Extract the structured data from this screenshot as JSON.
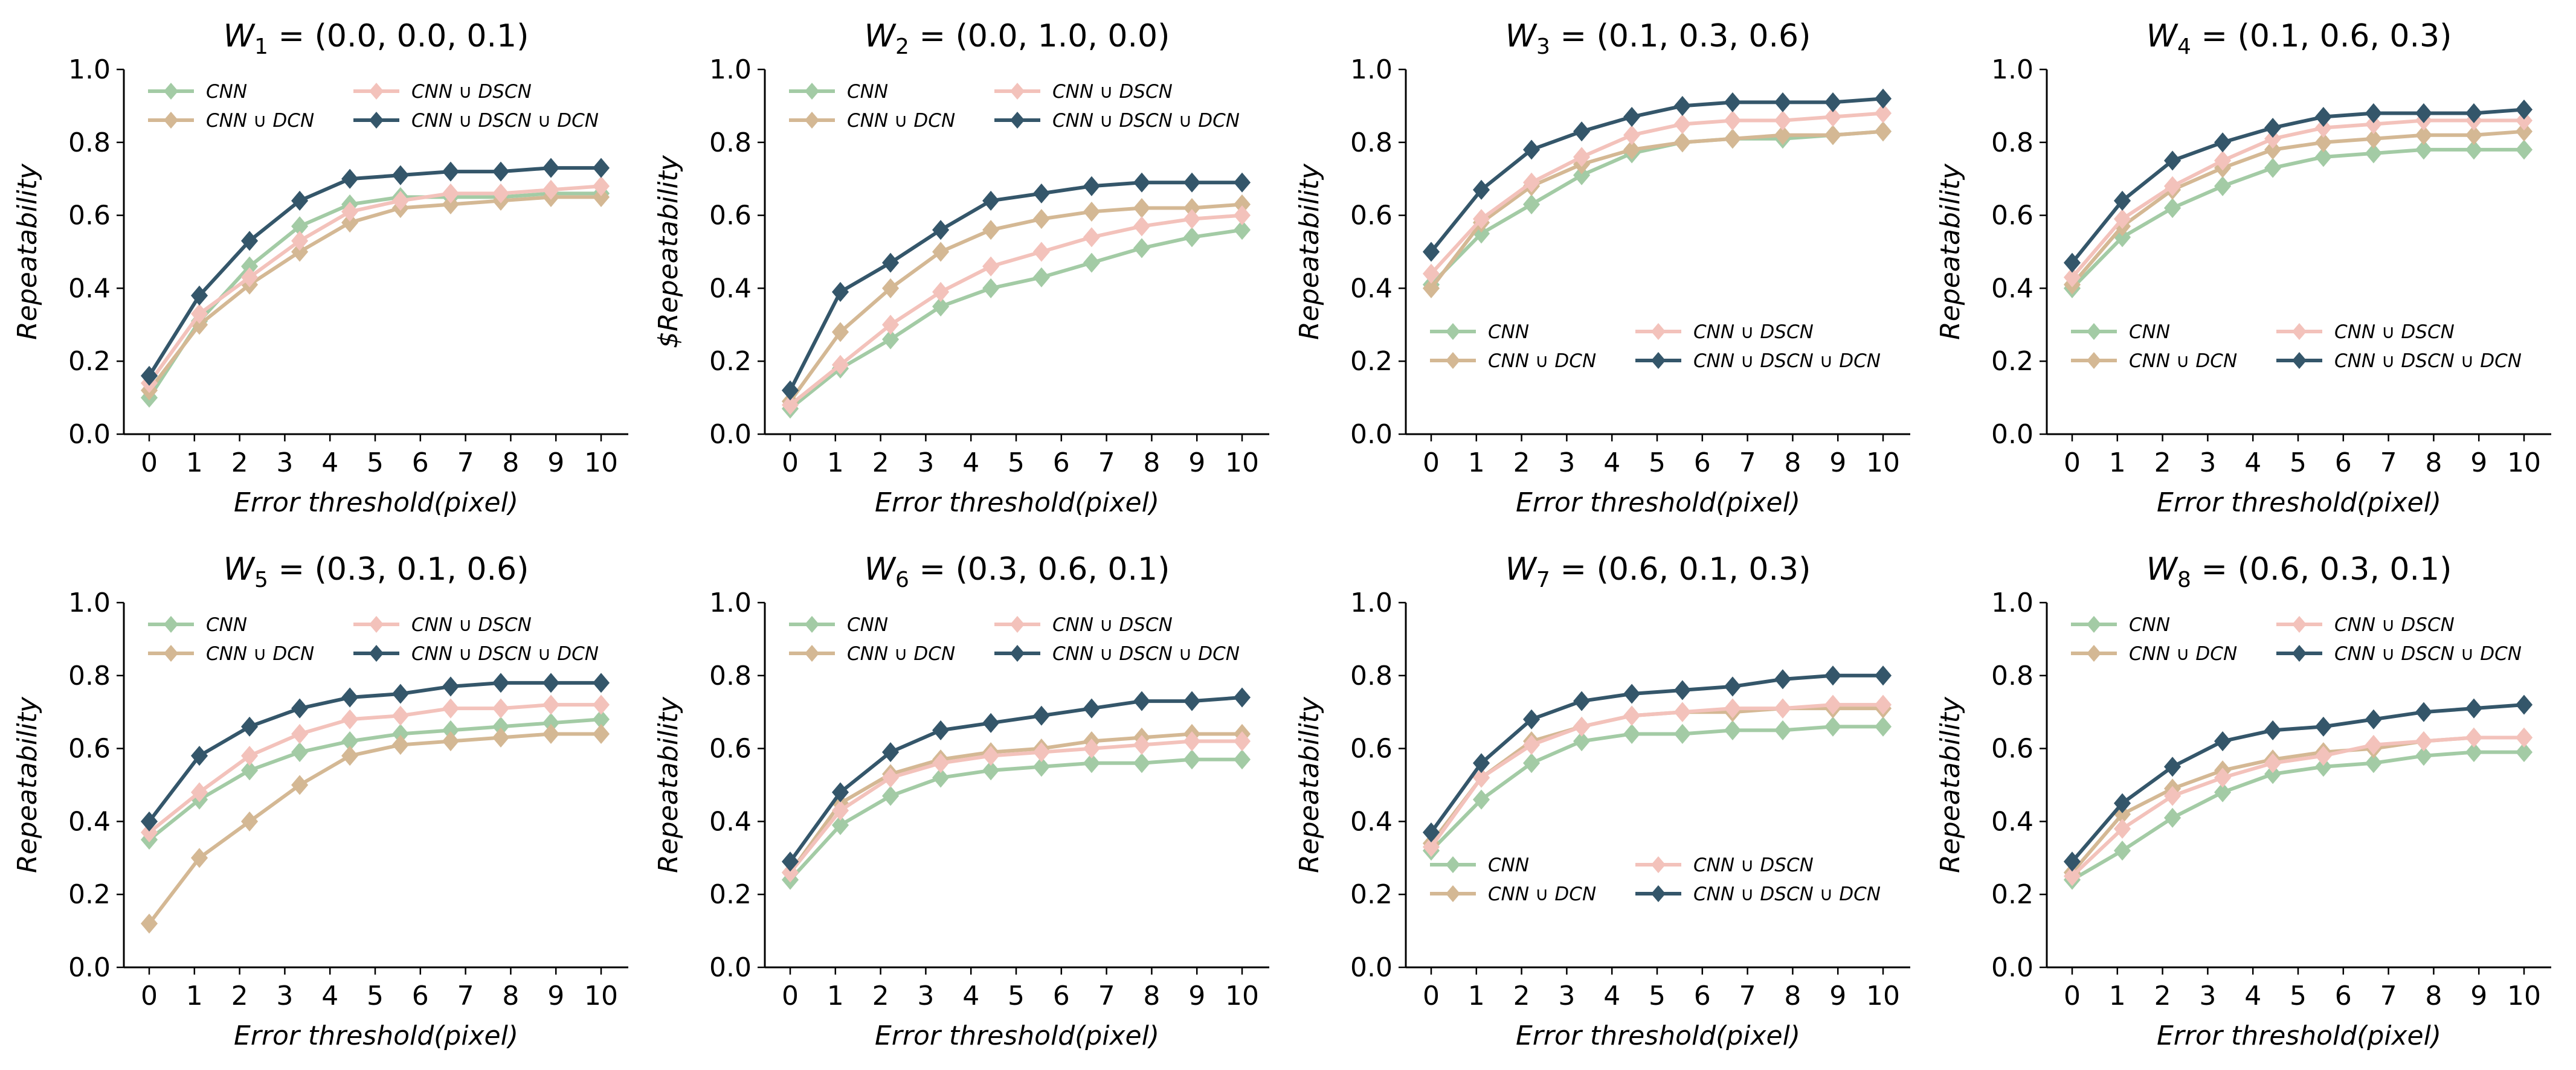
{
  "colors": {
    "CNN": "#a3cba5",
    "CNN ∪ DCN": "#d4b894",
    "CNN ∪ DSCN": "#f3c2bb",
    "CNN ∪ DSCN ∪ DCN": "#34566a"
  },
  "chart_data": [
    {
      "type": "line",
      "title": "W_1 = (0.0, 0.0, 0.1)",
      "title_main": "W",
      "title_sub": "1",
      "title_rest": " = (0.0, 0.0, 0.1)",
      "xlabel": "Error    threshold(pixel)",
      "ylabel": "Repeatability",
      "ylim": [
        0,
        1.0
      ],
      "xlim": [
        0,
        10
      ],
      "yticks": [
        "0.0",
        "0.2",
        "0.4",
        "0.6",
        "0.8",
        "1.0"
      ],
      "xticks": [
        "0",
        "1",
        "2",
        "3",
        "4",
        "5",
        "6",
        "7",
        "8",
        "9",
        "10"
      ],
      "legend_position": "top",
      "x": [
        0,
        1.11,
        2.22,
        3.33,
        4.44,
        5.56,
        6.67,
        7.78,
        8.89,
        10
      ],
      "series": [
        {
          "name": "CNN",
          "values": [
            0.1,
            0.31,
            0.46,
            0.57,
            0.63,
            0.65,
            0.65,
            0.65,
            0.66,
            0.66
          ]
        },
        {
          "name": "CNN ∪ DCN",
          "values": [
            0.12,
            0.3,
            0.41,
            0.5,
            0.58,
            0.62,
            0.63,
            0.64,
            0.65,
            0.65
          ]
        },
        {
          "name": "CNN ∪ DSCN",
          "values": [
            0.14,
            0.33,
            0.43,
            0.53,
            0.61,
            0.64,
            0.66,
            0.66,
            0.67,
            0.68
          ]
        },
        {
          "name": "CNN ∪ DSCN ∪ DCN",
          "values": [
            0.16,
            0.38,
            0.53,
            0.64,
            0.7,
            0.71,
            0.72,
            0.72,
            0.73,
            0.73
          ]
        }
      ]
    },
    {
      "type": "line",
      "title": "W_2 = (0.0, 1.0, 0.0)",
      "title_main": "W",
      "title_sub": "2",
      "title_rest": " = (0.0, 1.0, 0.0)",
      "xlabel": "Error    threshold(pixel)",
      "ylabel": "$Repeatability",
      "ylim": [
        0,
        1.0
      ],
      "xlim": [
        0,
        10
      ],
      "yticks": [
        "0.0",
        "0.2",
        "0.4",
        "0.6",
        "0.8",
        "1.0"
      ],
      "xticks": [
        "0",
        "1",
        "2",
        "3",
        "4",
        "5",
        "6",
        "7",
        "8",
        "9",
        "10"
      ],
      "legend_position": "top",
      "x": [
        0,
        1.11,
        2.22,
        3.33,
        4.44,
        5.56,
        6.67,
        7.78,
        8.89,
        10
      ],
      "series": [
        {
          "name": "CNN",
          "values": [
            0.07,
            0.18,
            0.26,
            0.35,
            0.4,
            0.43,
            0.47,
            0.51,
            0.54,
            0.56
          ]
        },
        {
          "name": "CNN ∪ DCN",
          "values": [
            0.09,
            0.28,
            0.4,
            0.5,
            0.56,
            0.59,
            0.61,
            0.62,
            0.62,
            0.63
          ]
        },
        {
          "name": "CNN ∪ DSCN",
          "values": [
            0.08,
            0.19,
            0.3,
            0.39,
            0.46,
            0.5,
            0.54,
            0.57,
            0.59,
            0.6
          ]
        },
        {
          "name": "CNN ∪ DSCN ∪ DCN",
          "values": [
            0.12,
            0.39,
            0.47,
            0.56,
            0.64,
            0.66,
            0.68,
            0.69,
            0.69,
            0.69
          ]
        }
      ]
    },
    {
      "type": "line",
      "title": "W_3 = (0.1, 0.3, 0.6)",
      "title_main": "W",
      "title_sub": "3",
      "title_rest": " = (0.1, 0.3, 0.6)",
      "xlabel": "Error    threshold(pixel)",
      "ylabel": "Repeatability",
      "ylim": [
        0,
        1.0
      ],
      "xlim": [
        0,
        10
      ],
      "yticks": [
        "0.0",
        "0.2",
        "0.4",
        "0.6",
        "0.8",
        "1.0"
      ],
      "xticks": [
        "0",
        "1",
        "2",
        "3",
        "4",
        "5",
        "6",
        "7",
        "8",
        "9",
        "10"
      ],
      "legend_position": "bottom",
      "x": [
        0,
        1.11,
        2.22,
        3.33,
        4.44,
        5.56,
        6.67,
        7.78,
        8.89,
        10
      ],
      "series": [
        {
          "name": "CNN",
          "values": [
            0.41,
            0.55,
            0.63,
            0.71,
            0.77,
            0.8,
            0.81,
            0.81,
            0.82,
            0.83
          ]
        },
        {
          "name": "CNN ∪ DCN",
          "values": [
            0.4,
            0.58,
            0.68,
            0.74,
            0.78,
            0.8,
            0.81,
            0.82,
            0.82,
            0.83
          ]
        },
        {
          "name": "CNN ∪ DSCN",
          "values": [
            0.44,
            0.59,
            0.69,
            0.76,
            0.82,
            0.85,
            0.86,
            0.86,
            0.87,
            0.88
          ]
        },
        {
          "name": "CNN ∪ DSCN ∪ DCN",
          "values": [
            0.5,
            0.67,
            0.78,
            0.83,
            0.87,
            0.9,
            0.91,
            0.91,
            0.91,
            0.92
          ]
        }
      ]
    },
    {
      "type": "line",
      "title": "W_4 = (0.1, 0.6, 0.3)",
      "title_main": "W",
      "title_sub": "4",
      "title_rest": " = (0.1, 0.6, 0.3)",
      "xlabel": "Error    threshold(pixel)",
      "ylabel": "Repeatability",
      "ylim": [
        0,
        1.0
      ],
      "xlim": [
        0,
        10
      ],
      "yticks": [
        "0.0",
        "0.2",
        "0.4",
        "0.6",
        "0.8",
        "1.0"
      ],
      "xticks": [
        "0",
        "1",
        "2",
        "3",
        "4",
        "5",
        "6",
        "7",
        "8",
        "9",
        "10"
      ],
      "legend_position": "bottom",
      "x": [
        0,
        1.11,
        2.22,
        3.33,
        4.44,
        5.56,
        6.67,
        7.78,
        8.89,
        10
      ],
      "series": [
        {
          "name": "CNN",
          "values": [
            0.4,
            0.54,
            0.62,
            0.68,
            0.73,
            0.76,
            0.77,
            0.78,
            0.78,
            0.78
          ]
        },
        {
          "name": "CNN ∪ DCN",
          "values": [
            0.41,
            0.57,
            0.67,
            0.73,
            0.78,
            0.8,
            0.81,
            0.82,
            0.82,
            0.83
          ]
        },
        {
          "name": "CNN ∪ DSCN",
          "values": [
            0.43,
            0.59,
            0.68,
            0.75,
            0.81,
            0.84,
            0.85,
            0.86,
            0.86,
            0.86
          ]
        },
        {
          "name": "CNN ∪ DSCN ∪ DCN",
          "values": [
            0.47,
            0.64,
            0.75,
            0.8,
            0.84,
            0.87,
            0.88,
            0.88,
            0.88,
            0.89
          ]
        }
      ]
    },
    {
      "type": "line",
      "title": "W_5 = (0.3, 0.1, 0.6)",
      "title_main": "W",
      "title_sub": "5",
      "title_rest": " = (0.3, 0.1, 0.6)",
      "xlabel": "Error    threshold(pixel)",
      "ylabel": "Repeatability",
      "ylim": [
        0,
        1.0
      ],
      "xlim": [
        0,
        10
      ],
      "yticks": [
        "0.0",
        "0.2",
        "0.4",
        "0.6",
        "0.8",
        "1.0"
      ],
      "xticks": [
        "0",
        "1",
        "2",
        "3",
        "4",
        "5",
        "6",
        "7",
        "8",
        "9",
        "10"
      ],
      "legend_position": "top",
      "x": [
        0,
        1.11,
        2.22,
        3.33,
        4.44,
        5.56,
        6.67,
        7.78,
        8.89,
        10
      ],
      "series": [
        {
          "name": "CNN",
          "values": [
            0.35,
            0.46,
            0.54,
            0.59,
            0.62,
            0.64,
            0.65,
            0.66,
            0.67,
            0.68
          ]
        },
        {
          "name": "CNN ∪ DCN",
          "values": [
            0.12,
            0.3,
            0.4,
            0.5,
            0.58,
            0.61,
            0.62,
            0.63,
            0.64,
            0.64
          ]
        },
        {
          "name": "CNN ∪ DSCN",
          "values": [
            0.37,
            0.48,
            0.58,
            0.64,
            0.68,
            0.69,
            0.71,
            0.71,
            0.72,
            0.72
          ]
        },
        {
          "name": "CNN ∪ DSCN ∪ DCN",
          "values": [
            0.4,
            0.58,
            0.66,
            0.71,
            0.74,
            0.75,
            0.77,
            0.78,
            0.78,
            0.78
          ]
        }
      ]
    },
    {
      "type": "line",
      "title": "W_6 = (0.3, 0.6, 0.1)",
      "title_main": "W",
      "title_sub": "6",
      "title_rest": " = (0.3, 0.6, 0.1)",
      "xlabel": "Error    threshold(pixel)",
      "ylabel": "Repeatability",
      "ylim": [
        0,
        1.0
      ],
      "xlim": [
        0,
        10
      ],
      "yticks": [
        "0.0",
        "0.2",
        "0.4",
        "0.6",
        "0.8",
        "1.0"
      ],
      "xticks": [
        "0",
        "1",
        "2",
        "3",
        "4",
        "5",
        "6",
        "7",
        "8",
        "9",
        "10"
      ],
      "legend_position": "top",
      "x": [
        0,
        1.11,
        2.22,
        3.33,
        4.44,
        5.56,
        6.67,
        7.78,
        8.89,
        10
      ],
      "series": [
        {
          "name": "CNN",
          "values": [
            0.24,
            0.39,
            0.47,
            0.52,
            0.54,
            0.55,
            0.56,
            0.56,
            0.57,
            0.57
          ]
        },
        {
          "name": "CNN ∪ DCN",
          "values": [
            0.26,
            0.45,
            0.53,
            0.57,
            0.59,
            0.6,
            0.62,
            0.63,
            0.64,
            0.64
          ]
        },
        {
          "name": "CNN ∪ DSCN",
          "values": [
            0.26,
            0.43,
            0.52,
            0.56,
            0.58,
            0.59,
            0.6,
            0.61,
            0.62,
            0.62
          ]
        },
        {
          "name": "CNN ∪ DSCN ∪ DCN",
          "values": [
            0.29,
            0.48,
            0.59,
            0.65,
            0.67,
            0.69,
            0.71,
            0.73,
            0.73,
            0.74
          ]
        }
      ]
    },
    {
      "type": "line",
      "title": "W_7 = (0.6, 0.1, 0.3)",
      "title_main": "W",
      "title_sub": "7",
      "title_rest": " = (0.6, 0.1, 0.3)",
      "xlabel": "Error    threshold(pixel)",
      "ylabel": "Repeatability",
      "ylim": [
        0,
        1.0
      ],
      "xlim": [
        0,
        10
      ],
      "yticks": [
        "0.0",
        "0.2",
        "0.4",
        "0.6",
        "0.8",
        "1.0"
      ],
      "xticks": [
        "0",
        "1",
        "2",
        "3",
        "4",
        "5",
        "6",
        "7",
        "8",
        "9",
        "10"
      ],
      "legend_position": "bottom",
      "x": [
        0,
        1.11,
        2.22,
        3.33,
        4.44,
        5.56,
        6.67,
        7.78,
        8.89,
        10
      ],
      "series": [
        {
          "name": "CNN",
          "values": [
            0.32,
            0.46,
            0.56,
            0.62,
            0.64,
            0.64,
            0.65,
            0.65,
            0.66,
            0.66
          ]
        },
        {
          "name": "CNN ∪ DCN",
          "values": [
            0.34,
            0.52,
            0.62,
            0.66,
            0.69,
            0.7,
            0.7,
            0.71,
            0.71,
            0.71
          ]
        },
        {
          "name": "CNN ∪ DSCN",
          "values": [
            0.33,
            0.52,
            0.61,
            0.66,
            0.69,
            0.7,
            0.71,
            0.71,
            0.72,
            0.72
          ]
        },
        {
          "name": "CNN ∪ DSCN ∪ DCN",
          "values": [
            0.37,
            0.56,
            0.68,
            0.73,
            0.75,
            0.76,
            0.77,
            0.79,
            0.8,
            0.8
          ]
        }
      ]
    },
    {
      "type": "line",
      "title": "W_8 = (0.6, 0.3, 0.1)",
      "title_main": "W",
      "title_sub": "8",
      "title_rest": " = (0.6, 0.3, 0.1)",
      "xlabel": "Error    threshold(pixel)",
      "ylabel": "Repeatability",
      "ylim": [
        0,
        1.0
      ],
      "xlim": [
        0,
        10
      ],
      "yticks": [
        "0.0",
        "0.2",
        "0.4",
        "0.6",
        "0.8",
        "1.0"
      ],
      "xticks": [
        "0",
        "1",
        "2",
        "3",
        "4",
        "5",
        "6",
        "7",
        "8",
        "9",
        "10"
      ],
      "legend_position": "top",
      "x": [
        0,
        1.11,
        2.22,
        3.33,
        4.44,
        5.56,
        6.67,
        7.78,
        8.89,
        10
      ],
      "series": [
        {
          "name": "CNN",
          "values": [
            0.24,
            0.32,
            0.41,
            0.48,
            0.53,
            0.55,
            0.56,
            0.58,
            0.59,
            0.59
          ]
        },
        {
          "name": "CNN ∪ DCN",
          "values": [
            0.26,
            0.42,
            0.49,
            0.54,
            0.57,
            0.59,
            0.6,
            0.62,
            0.63,
            0.63
          ]
        },
        {
          "name": "CNN ∪ DSCN",
          "values": [
            0.25,
            0.38,
            0.47,
            0.52,
            0.56,
            0.58,
            0.61,
            0.62,
            0.63,
            0.63
          ]
        },
        {
          "name": "CNN ∪ DSCN ∪ DCN",
          "values": [
            0.29,
            0.45,
            0.55,
            0.62,
            0.65,
            0.66,
            0.68,
            0.7,
            0.71,
            0.72
          ]
        }
      ]
    }
  ]
}
